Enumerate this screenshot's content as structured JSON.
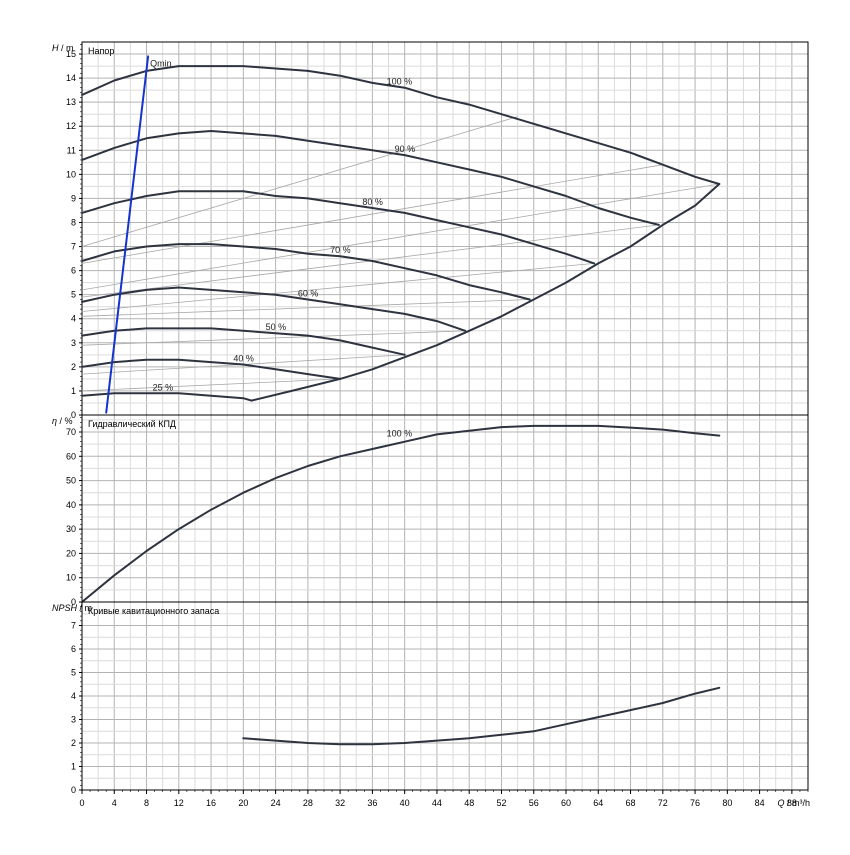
{
  "chart_data": [
    {
      "panel": "head",
      "type": "line",
      "title": "Напор",
      "ylabel_var": "H",
      "ylabel_unit": "m",
      "ylim": [
        0,
        15.5
      ],
      "yticks": [
        0,
        1,
        2,
        3,
        4,
        5,
        6,
        7,
        8,
        9,
        10,
        11,
        12,
        13,
        14,
        15
      ],
      "xlim": [
        0,
        90
      ],
      "grid": true,
      "series": [
        {
          "name": "100 %",
          "points": [
            [
              0,
              13.3
            ],
            [
              4,
              13.9
            ],
            [
              8,
              14.3
            ],
            [
              12,
              14.5
            ],
            [
              16,
              14.5
            ],
            [
              20,
              14.5
            ],
            [
              24,
              14.4
            ],
            [
              28,
              14.3
            ],
            [
              32,
              14.1
            ],
            [
              36,
              13.8
            ],
            [
              40,
              13.6
            ],
            [
              44,
              13.2
            ],
            [
              48,
              12.9
            ],
            [
              52,
              12.5
            ],
            [
              56,
              12.1
            ],
            [
              60,
              11.7
            ],
            [
              64,
              11.3
            ],
            [
              68,
              10.9
            ],
            [
              72,
              10.4
            ],
            [
              76,
              9.9
            ],
            [
              79,
              9.6
            ]
          ]
        },
        {
          "name": "90 %",
          "points": [
            [
              0,
              10.6
            ],
            [
              4,
              11.1
            ],
            [
              8,
              11.5
            ],
            [
              12,
              11.7
            ],
            [
              16,
              11.8
            ],
            [
              20,
              11.7
            ],
            [
              24,
              11.6
            ],
            [
              28,
              11.4
            ],
            [
              32,
              11.2
            ],
            [
              36,
              11.0
            ],
            [
              40,
              10.8
            ],
            [
              44,
              10.5
            ],
            [
              48,
              10.2
            ],
            [
              52,
              9.9
            ],
            [
              56,
              9.5
            ],
            [
              60,
              9.1
            ],
            [
              64,
              8.6
            ],
            [
              68,
              8.2
            ],
            [
              71.5,
              7.9
            ]
          ]
        },
        {
          "name": "80 %",
          "points": [
            [
              0,
              8.4
            ],
            [
              4,
              8.8
            ],
            [
              8,
              9.1
            ],
            [
              12,
              9.3
            ],
            [
              16,
              9.3
            ],
            [
              20,
              9.3
            ],
            [
              24,
              9.1
            ],
            [
              28,
              9.0
            ],
            [
              32,
              8.8
            ],
            [
              36,
              8.6
            ],
            [
              40,
              8.4
            ],
            [
              44,
              8.1
            ],
            [
              48,
              7.8
            ],
            [
              52,
              7.5
            ],
            [
              56,
              7.1
            ],
            [
              60,
              6.7
            ],
            [
              63.5,
              6.3
            ]
          ]
        },
        {
          "name": "70 %",
          "points": [
            [
              0,
              6.4
            ],
            [
              4,
              6.8
            ],
            [
              8,
              7.0
            ],
            [
              12,
              7.1
            ],
            [
              16,
              7.1
            ],
            [
              20,
              7.0
            ],
            [
              24,
              6.9
            ],
            [
              28,
              6.7
            ],
            [
              32,
              6.6
            ],
            [
              36,
              6.4
            ],
            [
              40,
              6.1
            ],
            [
              44,
              5.8
            ],
            [
              48,
              5.4
            ],
            [
              52,
              5.1
            ],
            [
              55.5,
              4.8
            ]
          ]
        },
        {
          "name": "60 %",
          "points": [
            [
              0,
              4.7
            ],
            [
              4,
              5.0
            ],
            [
              8,
              5.2
            ],
            [
              12,
              5.3
            ],
            [
              16,
              5.2
            ],
            [
              20,
              5.1
            ],
            [
              24,
              5.0
            ],
            [
              28,
              4.8
            ],
            [
              32,
              4.6
            ],
            [
              36,
              4.4
            ],
            [
              40,
              4.2
            ],
            [
              44,
              3.9
            ],
            [
              47.5,
              3.5
            ]
          ]
        },
        {
          "name": "50 %",
          "points": [
            [
              0,
              3.3
            ],
            [
              4,
              3.5
            ],
            [
              8,
              3.6
            ],
            [
              12,
              3.6
            ],
            [
              16,
              3.6
            ],
            [
              20,
              3.5
            ],
            [
              24,
              3.4
            ],
            [
              28,
              3.3
            ],
            [
              32,
              3.1
            ],
            [
              36,
              2.8
            ],
            [
              40,
              2.5
            ]
          ]
        },
        {
          "name": "40 %",
          "points": [
            [
              0,
              2.0
            ],
            [
              4,
              2.2
            ],
            [
              8,
              2.3
            ],
            [
              12,
              2.3
            ],
            [
              16,
              2.2
            ],
            [
              20,
              2.1
            ],
            [
              24,
              1.9
            ],
            [
              28,
              1.7
            ],
            [
              32,
              1.5
            ]
          ]
        },
        {
          "name": "25 %",
          "points": [
            [
              0,
              0.8
            ],
            [
              4,
              0.9
            ],
            [
              8,
              0.9
            ],
            [
              12,
              0.9
            ],
            [
              16,
              0.8
            ],
            [
              20,
              0.7
            ],
            [
              21,
              0.6
            ]
          ]
        }
      ],
      "operating_limit": {
        "points": [
          [
            21,
            0.6
          ],
          [
            26,
            1.0
          ],
          [
            32,
            1.5
          ],
          [
            36,
            1.9
          ],
          [
            40,
            2.4
          ],
          [
            44,
            2.9
          ],
          [
            48,
            3.5
          ],
          [
            52,
            4.1
          ],
          [
            56,
            4.8
          ],
          [
            60,
            5.5
          ],
          [
            64,
            6.3
          ],
          [
            68,
            7.0
          ],
          [
            72,
            7.9
          ],
          [
            76,
            8.7
          ],
          [
            79,
            9.6
          ]
        ]
      },
      "efficiency_lines": [
        {
          "points": [
            [
              0,
              1.0
            ],
            [
              32,
              1.5
            ]
          ]
        },
        {
          "points": [
            [
              0,
              1.7
            ],
            [
              40,
              2.5
            ]
          ]
        },
        {
          "points": [
            [
              0,
              2.9
            ],
            [
              47.5,
              3.5
            ]
          ]
        },
        {
          "points": [
            [
              0,
              4.1
            ],
            [
              55.5,
              4.8
            ]
          ]
        },
        {
          "points": [
            [
              0,
              4.3
            ],
            [
              63.5,
              6.3
            ]
          ]
        },
        {
          "points": [
            [
              0,
              4.9
            ],
            [
              71.5,
              7.9
            ]
          ]
        },
        {
          "points": [
            [
              0,
              5.2
            ],
            [
              79,
              9.6
            ]
          ]
        },
        {
          "points": [
            [
              0,
              6.3
            ],
            [
              72,
              10.4
            ]
          ]
        },
        {
          "points": [
            [
              0,
              7.0
            ],
            [
              54,
              12.4
            ]
          ]
        }
      ],
      "qmin_line": {
        "label": "Qmin",
        "points": [
          [
            3,
            0.1
          ],
          [
            8.2,
            14.9
          ]
        ]
      }
    },
    {
      "panel": "efficiency",
      "type": "line",
      "title": "Гидравлический КПД",
      "ylabel_var": "η",
      "ylabel_unit": "%",
      "ylim": [
        0,
        77
      ],
      "yticks": [
        0,
        10,
        20,
        30,
        40,
        50,
        60,
        70
      ],
      "xlim": [
        0,
        90
      ],
      "grid": true,
      "series": [
        {
          "name": "100 %",
          "points": [
            [
              0,
              0
            ],
            [
              4,
              11
            ],
            [
              8,
              21
            ],
            [
              12,
              30
            ],
            [
              16,
              38
            ],
            [
              20,
              45
            ],
            [
              24,
              51
            ],
            [
              28,
              56
            ],
            [
              32,
              60
            ],
            [
              36,
              63
            ],
            [
              40,
              66
            ],
            [
              44,
              69
            ],
            [
              48,
              70.5
            ],
            [
              52,
              72
            ],
            [
              56,
              72.5
            ],
            [
              60,
              72.5
            ],
            [
              64,
              72.5
            ],
            [
              68,
              71.8
            ],
            [
              72,
              71
            ],
            [
              76,
              69.5
            ],
            [
              79,
              68.5
            ]
          ]
        }
      ]
    },
    {
      "panel": "npsh",
      "type": "line",
      "title": "Кривые кавитационного запаса",
      "ylabel_var": "NPSH",
      "ylabel_unit": "m",
      "ylim": [
        0,
        8
      ],
      "yticks": [
        0,
        1,
        2,
        3,
        4,
        5,
        6,
        7
      ],
      "xlim": [
        0,
        90
      ],
      "grid": true,
      "xlabel_var": "Q",
      "xlabel_unit": "m³/h",
      "xticks": [
        0,
        4,
        8,
        12,
        16,
        20,
        24,
        28,
        32,
        36,
        40,
        44,
        48,
        52,
        56,
        60,
        64,
        68,
        72,
        76,
        80,
        84,
        88
      ],
      "series": [
        {
          "name": "",
          "points": [
            [
              20,
              2.2
            ],
            [
              24,
              2.1
            ],
            [
              28,
              2.0
            ],
            [
              32,
              1.95
            ],
            [
              36,
              1.95
            ],
            [
              40,
              2.0
            ],
            [
              44,
              2.1
            ],
            [
              48,
              2.2
            ],
            [
              52,
              2.35
            ],
            [
              56,
              2.5
            ],
            [
              60,
              2.8
            ],
            [
              64,
              3.1
            ],
            [
              68,
              3.4
            ],
            [
              72,
              3.7
            ],
            [
              76,
              4.1
            ],
            [
              79,
              4.35
            ]
          ]
        }
      ]
    }
  ]
}
